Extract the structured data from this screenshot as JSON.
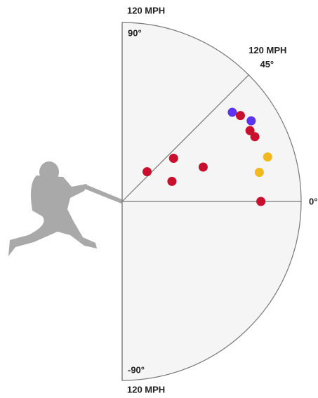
{
  "chart_data": {
    "type": "polar-scatter",
    "range_label": "120 MPH",
    "rlim": [
      0,
      120
    ],
    "thetalim": [
      -90,
      90
    ],
    "thetaticks": [
      {
        "value": 90,
        "label": "90°"
      },
      {
        "value": 45,
        "label": "45°"
      },
      {
        "value": 0,
        "label": "0°"
      },
      {
        "value": -90,
        "label": "-90°"
      }
    ],
    "theta": [
      39,
      36,
      32,
      29,
      26,
      17,
      12,
      0,
      40,
      50,
      22,
      23
    ],
    "r": [
      95,
      98,
      102,
      98,
      99,
      102,
      94,
      93,
      45,
      26,
      36,
      59
    ],
    "colors": [
      "#5b34f0",
      "#c8102e",
      "#5b34f0",
      "#c8102e",
      "#c8102e",
      "#f2b91e",
      "#f2b91e",
      "#c8102e",
      "#c8102e",
      "#c8102e",
      "#c8102e",
      "#c8102e"
    ]
  }
}
